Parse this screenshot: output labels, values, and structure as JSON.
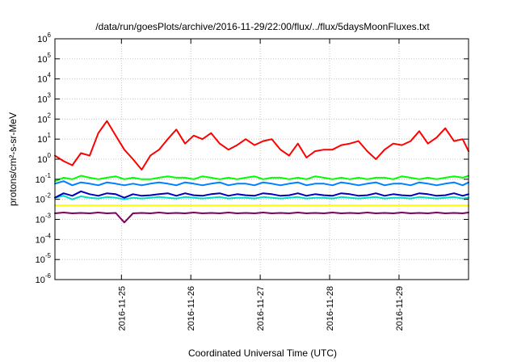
{
  "chart_data": {
    "type": "line",
    "title": "/data/run/goesPlots/archive/2016-11-29/22:00/flux/../flux/5daysMoonFluxes.txt",
    "xlabel": "Coordinated Universal Time (UTC)",
    "ylabel": "protons/cm²-s-sr-MeV",
    "yscale": "log",
    "ylim": [
      1e-06,
      1000000.0
    ],
    "xlim": [
      "2016-11-24 01:00",
      "2016-11-30 00:00"
    ],
    "x_ticks": [
      "2016-11-25",
      "2016-11-26",
      "2016-11-27",
      "2016-11-28",
      "2016-11-29"
    ],
    "y_ticks": [
      {
        "value": -6,
        "base": "10",
        "exp": "-6"
      },
      {
        "value": -5,
        "base": "10",
        "exp": "-5"
      },
      {
        "value": -4,
        "base": "10",
        "exp": "-4"
      },
      {
        "value": -3,
        "base": "10",
        "exp": "-3"
      },
      {
        "value": -2,
        "base": "10",
        "exp": "-2"
      },
      {
        "value": -1,
        "base": "10",
        "exp": "-1"
      },
      {
        "value": 0,
        "base": "10",
        "exp": "0"
      },
      {
        "value": 1,
        "base": "10",
        "exp": "1"
      },
      {
        "value": 2,
        "base": "10",
        "exp": "2"
      },
      {
        "value": 3,
        "base": "10",
        "exp": "3"
      },
      {
        "value": 4,
        "base": "10",
        "exp": "4"
      },
      {
        "value": 5,
        "base": "10",
        "exp": "5"
      },
      {
        "value": 6,
        "base": "10",
        "exp": "6"
      }
    ],
    "grid": true,
    "legend": "none",
    "x_day_offsets": [
      0,
      0.125,
      0.25,
      0.375,
      0.5,
      0.625,
      0.75,
      0.875,
      1.0,
      1.125,
      1.25,
      1.375,
      1.5,
      1.625,
      1.75,
      1.875,
      2.0,
      2.125,
      2.25,
      2.375,
      2.5,
      2.625,
      2.75,
      2.875,
      3.0,
      3.125,
      3.25,
      3.375,
      3.5,
      3.625,
      3.75,
      3.875,
      4.0,
      4.125,
      4.25,
      4.375,
      4.5,
      4.625,
      4.75,
      4.875,
      5.0,
      5.125,
      5.25,
      5.375,
      5.5,
      5.625,
      5.75,
      5.875,
      5.96
    ],
    "series": [
      {
        "color": "#ff0000",
        "values": [
          1.5,
          0.8,
          0.5,
          2.0,
          1.5,
          20,
          80,
          15,
          3,
          1.0,
          0.3,
          1.5,
          3,
          10,
          30,
          6,
          15,
          10,
          20,
          6,
          3,
          5,
          10,
          5,
          8,
          10,
          3,
          1.5,
          6,
          1.2,
          2.5,
          3,
          3,
          5,
          6,
          8,
          2.5,
          1.0,
          3,
          6,
          5,
          8,
          25,
          6,
          12,
          35,
          8,
          10,
          2.5
        ]
      },
      {
        "color": "#00ff00",
        "values": [
          0.08,
          0.12,
          0.1,
          0.15,
          0.12,
          0.1,
          0.12,
          0.14,
          0.1,
          0.12,
          0.1,
          0.1,
          0.12,
          0.14,
          0.12,
          0.12,
          0.1,
          0.14,
          0.12,
          0.1,
          0.12,
          0.1,
          0.12,
          0.14,
          0.1,
          0.12,
          0.12,
          0.1,
          0.12,
          0.1,
          0.14,
          0.12,
          0.1,
          0.12,
          0.1,
          0.12,
          0.1,
          0.12,
          0.12,
          0.1,
          0.14,
          0.12,
          0.1,
          0.12,
          0.1,
          0.12,
          0.14,
          0.12,
          0.15
        ]
      },
      {
        "color": "#0080ff",
        "values": [
          0.06,
          0.08,
          0.05,
          0.07,
          0.06,
          0.05,
          0.07,
          0.06,
          0.05,
          0.06,
          0.05,
          0.06,
          0.07,
          0.06,
          0.05,
          0.07,
          0.06,
          0.05,
          0.06,
          0.07,
          0.05,
          0.06,
          0.06,
          0.05,
          0.07,
          0.06,
          0.05,
          0.06,
          0.07,
          0.05,
          0.06,
          0.06,
          0.05,
          0.07,
          0.06,
          0.05,
          0.06,
          0.07,
          0.05,
          0.06,
          0.06,
          0.05,
          0.07,
          0.06,
          0.05,
          0.06,
          0.07,
          0.05,
          0.07
        ]
      },
      {
        "color": "#00e0c0",
        "values": [
          0.012,
          0.015,
          0.01,
          0.014,
          0.012,
          0.011,
          0.013,
          0.012,
          0.01,
          0.012,
          0.011,
          0.012,
          0.013,
          0.012,
          0.011,
          0.013,
          0.012,
          0.011,
          0.012,
          0.013,
          0.011,
          0.012,
          0.012,
          0.011,
          0.013,
          0.012,
          0.011,
          0.012,
          0.013,
          0.011,
          0.012,
          0.012,
          0.011,
          0.013,
          0.012,
          0.011,
          0.012,
          0.013,
          0.011,
          0.012,
          0.012,
          0.011,
          0.013,
          0.012,
          0.011,
          0.012,
          0.013,
          0.011,
          0.012
        ]
      },
      {
        "color": "#0000c0",
        "values": [
          0.012,
          0.02,
          0.015,
          0.025,
          0.018,
          0.015,
          0.02,
          0.018,
          0.012,
          0.018,
          0.015,
          0.016,
          0.018,
          0.02,
          0.015,
          0.02,
          0.016,
          0.015,
          0.018,
          0.02,
          0.015,
          0.018,
          0.016,
          0.015,
          0.02,
          0.018,
          0.015,
          0.016,
          0.02,
          0.015,
          0.018,
          0.016,
          0.015,
          0.02,
          0.018,
          0.015,
          0.016,
          0.02,
          0.015,
          0.018,
          0.016,
          0.015,
          0.02,
          0.018,
          0.015,
          0.016,
          0.02,
          0.015,
          0.018
        ]
      },
      {
        "color": "#ffff00",
        "values": [
          0.005,
          0.005,
          0.005,
          0.005,
          0.005,
          0.005,
          0.005,
          0.005,
          0.005,
          0.005,
          0.005,
          0.005,
          0.005,
          0.005,
          0.005,
          0.005,
          0.005,
          0.005,
          0.005,
          0.005,
          0.005,
          0.005,
          0.005,
          0.005,
          0.005,
          0.005,
          0.005,
          0.005,
          0.005,
          0.005,
          0.005,
          0.005,
          0.005,
          0.005,
          0.005,
          0.005,
          0.005,
          0.005,
          0.005,
          0.005,
          0.005,
          0.005,
          0.005,
          0.005,
          0.005,
          0.005,
          0.005,
          0.005,
          0.005
        ]
      },
      {
        "color": "#800060",
        "values": [
          0.002,
          0.0022,
          0.002,
          0.0021,
          0.002,
          0.0022,
          0.002,
          0.0021,
          0.0007,
          0.002,
          0.0021,
          0.002,
          0.0022,
          0.002,
          0.0021,
          0.002,
          0.0022,
          0.002,
          0.0021,
          0.002,
          0.0022,
          0.002,
          0.0021,
          0.002,
          0.0022,
          0.002,
          0.0021,
          0.002,
          0.0022,
          0.002,
          0.0021,
          0.002,
          0.0022,
          0.002,
          0.0021,
          0.002,
          0.0022,
          0.002,
          0.0021,
          0.002,
          0.0022,
          0.002,
          0.0021,
          0.002,
          0.0022,
          0.002,
          0.0021,
          0.002,
          0.0022
        ]
      }
    ]
  }
}
